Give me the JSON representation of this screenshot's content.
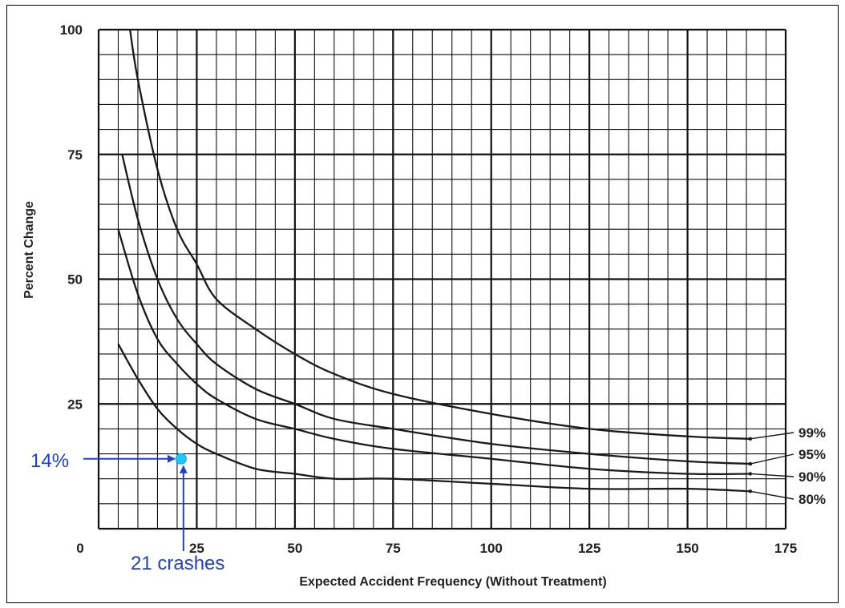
{
  "chart_data": {
    "type": "line",
    "title": "",
    "xlabel": "Expected Accident Frequency (Without Treatment)",
    "ylabel": "Percent Change",
    "xlim": [
      0,
      175
    ],
    "ylim": [
      0,
      100
    ],
    "x_ticks": [
      "0",
      "25",
      "50",
      "75",
      "100",
      "125",
      "150",
      "175"
    ],
    "y_ticks": [
      "25",
      "50",
      "75",
      "100"
    ],
    "grid": true,
    "series": [
      {
        "name": "99%",
        "x": [
          8,
          10,
          15,
          20,
          25,
          30,
          40,
          50,
          60,
          75,
          100,
          125,
          150,
          166
        ],
        "y": [
          100,
          90,
          72,
          60,
          53,
          46,
          40,
          35,
          31,
          27,
          23,
          20,
          18.5,
          18
        ]
      },
      {
        "name": "95%",
        "x": [
          6,
          10,
          15,
          20,
          25,
          30,
          40,
          50,
          60,
          75,
          100,
          125,
          150,
          166
        ],
        "y": [
          75,
          62,
          50,
          42,
          37,
          33,
          28,
          25,
          22,
          20,
          17,
          15,
          13.5,
          13
        ]
      },
      {
        "name": "90%",
        "x": [
          5,
          10,
          15,
          20,
          25,
          30,
          40,
          50,
          60,
          75,
          100,
          125,
          150,
          166
        ],
        "y": [
          60,
          47,
          38,
          33,
          29,
          26,
          22,
          20,
          18,
          16,
          14,
          12,
          11,
          11
        ]
      },
      {
        "name": "80%",
        "x": [
          5,
          10,
          15,
          20,
          25,
          30,
          40,
          50,
          60,
          75,
          100,
          125,
          150,
          166
        ],
        "y": [
          37,
          30,
          24,
          20,
          17,
          15,
          12,
          11,
          10,
          10,
          9,
          8,
          8,
          7.5
        ]
      }
    ],
    "annotations": [
      {
        "text": "14%",
        "points_to": {
          "x": 21,
          "y": 14
        }
      },
      {
        "text": "21 crashes",
        "points_to": {
          "x": 21,
          "y": 14
        }
      }
    ],
    "annotation_color": "#1f3fd0",
    "marker_color": "#1ec8ff"
  }
}
